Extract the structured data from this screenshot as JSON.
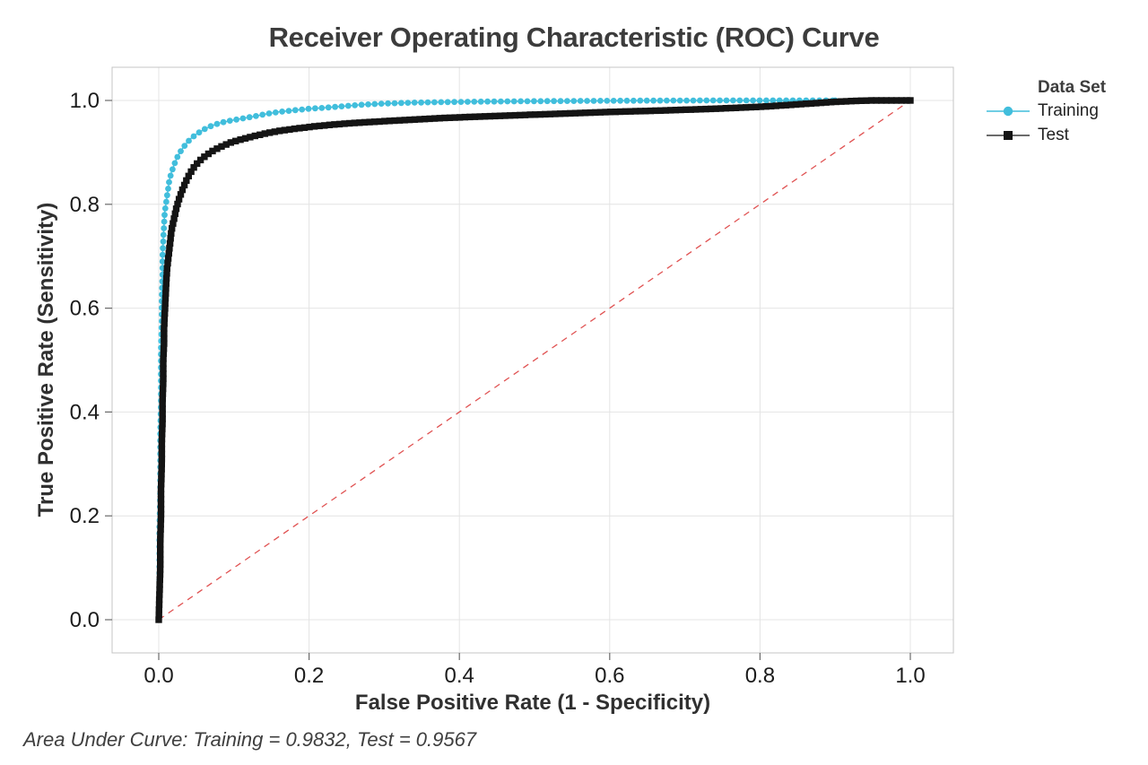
{
  "title": "Receiver Operating Characteristic (ROC) Curve",
  "footer": "Area Under Curve: Training = 0.9832, Test = 0.9567",
  "legend": {
    "title": "Data Set",
    "items": [
      {
        "label": "Training",
        "marker": "circle",
        "color": "#41bedc",
        "line_color": "#41bedc"
      },
      {
        "label": "Test",
        "marker": "square",
        "color": "#141414",
        "line_color": "#3a3a3a"
      }
    ]
  },
  "chart_data": {
    "type": "line",
    "title": "Receiver Operating Characteristic (ROC) Curve",
    "xlabel": "False Positive Rate (1 - Specificity)",
    "ylabel": "True Positive Rate (Sensitivity)",
    "xlim": [
      0.0,
      1.0
    ],
    "ylim": [
      0.0,
      1.0
    ],
    "xticks": [
      0.0,
      0.2,
      0.4,
      0.6,
      0.8,
      1.0
    ],
    "yticks": [
      0.0,
      0.2,
      0.4,
      0.6,
      0.8,
      1.0
    ],
    "grid": true,
    "legend_position": "right",
    "legend_title": "Data Set",
    "reference_line": {
      "from": [
        0,
        0
      ],
      "to": [
        1,
        1
      ],
      "style": "dashed",
      "color": "#e05252"
    },
    "colors": {
      "grid": "#e4e4e4",
      "border": "#c4c4c4",
      "tick": "#6a6a6a",
      "tick_label": "#1c1c1c"
    },
    "series": [
      {
        "name": "Training",
        "auc": 0.9832,
        "marker": "circle",
        "color": "#41bedc",
        "points": [
          [
            0.0,
            0.0
          ],
          [
            0.001,
            0.06
          ],
          [
            0.001,
            0.12
          ],
          [
            0.001,
            0.18
          ],
          [
            0.002,
            0.24
          ],
          [
            0.002,
            0.3
          ],
          [
            0.002,
            0.36
          ],
          [
            0.003,
            0.42
          ],
          [
            0.003,
            0.47
          ],
          [
            0.003,
            0.52
          ],
          [
            0.004,
            0.57
          ],
          [
            0.004,
            0.62
          ],
          [
            0.005,
            0.66
          ],
          [
            0.005,
            0.7
          ],
          [
            0.006,
            0.73
          ],
          [
            0.007,
            0.76
          ],
          [
            0.008,
            0.785
          ],
          [
            0.01,
            0.805
          ],
          [
            0.012,
            0.825
          ],
          [
            0.014,
            0.845
          ],
          [
            0.017,
            0.862
          ],
          [
            0.021,
            0.878
          ],
          [
            0.025,
            0.892
          ],
          [
            0.03,
            0.904
          ],
          [
            0.036,
            0.916
          ],
          [
            0.043,
            0.927
          ],
          [
            0.051,
            0.936
          ],
          [
            0.06,
            0.944
          ],
          [
            0.07,
            0.951
          ],
          [
            0.082,
            0.957
          ],
          [
            0.095,
            0.961
          ],
          [
            0.11,
            0.965
          ],
          [
            0.126,
            0.969
          ],
          [
            0.143,
            0.974
          ],
          [
            0.16,
            0.978
          ],
          [
            0.18,
            0.981
          ],
          [
            0.2,
            0.984
          ],
          [
            0.222,
            0.986
          ],
          [
            0.246,
            0.989
          ],
          [
            0.272,
            0.992
          ],
          [
            0.3,
            0.994
          ],
          [
            0.33,
            0.9955
          ],
          [
            0.362,
            0.9965
          ],
          [
            0.396,
            0.9972
          ],
          [
            0.432,
            0.9978
          ],
          [
            0.47,
            0.9983
          ],
          [
            0.51,
            0.9987
          ],
          [
            0.552,
            0.999
          ],
          [
            0.596,
            0.9993
          ],
          [
            0.642,
            0.9996
          ],
          [
            0.69,
            0.9998
          ],
          [
            0.74,
            1.0
          ],
          [
            0.792,
            1.0
          ],
          [
            0.846,
            1.0
          ],
          [
            0.9,
            1.0
          ]
        ]
      },
      {
        "name": "Test",
        "auc": 0.9567,
        "marker": "square",
        "color": "#141414",
        "points": [
          [
            0.0,
            0.0
          ],
          [
            0.001,
            0.05
          ],
          [
            0.002,
            0.1
          ],
          [
            0.002,
            0.15
          ],
          [
            0.003,
            0.2
          ],
          [
            0.003,
            0.25
          ],
          [
            0.004,
            0.3
          ],
          [
            0.004,
            0.34
          ],
          [
            0.005,
            0.38
          ],
          [
            0.005,
            0.42
          ],
          [
            0.006,
            0.46
          ],
          [
            0.006,
            0.5
          ],
          [
            0.007,
            0.53
          ],
          [
            0.007,
            0.56
          ],
          [
            0.008,
            0.59
          ],
          [
            0.009,
            0.62
          ],
          [
            0.01,
            0.65
          ],
          [
            0.011,
            0.675
          ],
          [
            0.013,
            0.7
          ],
          [
            0.015,
            0.725
          ],
          [
            0.017,
            0.75
          ],
          [
            0.02,
            0.77
          ],
          [
            0.023,
            0.79
          ],
          [
            0.027,
            0.81
          ],
          [
            0.032,
            0.83
          ],
          [
            0.038,
            0.85
          ],
          [
            0.045,
            0.868
          ],
          [
            0.053,
            0.882
          ],
          [
            0.062,
            0.893
          ],
          [
            0.072,
            0.903
          ],
          [
            0.083,
            0.911
          ],
          [
            0.096,
            0.919
          ],
          [
            0.11,
            0.925
          ],
          [
            0.126,
            0.931
          ],
          [
            0.144,
            0.937
          ],
          [
            0.163,
            0.942
          ],
          [
            0.184,
            0.946
          ],
          [
            0.207,
            0.95
          ],
          [
            0.232,
            0.9535
          ],
          [
            0.259,
            0.9565
          ],
          [
            0.288,
            0.959
          ],
          [
            0.318,
            0.9615
          ],
          [
            0.35,
            0.964
          ],
          [
            0.384,
            0.9665
          ],
          [
            0.42,
            0.9685
          ],
          [
            0.457,
            0.9705
          ],
          [
            0.495,
            0.9725
          ],
          [
            0.534,
            0.9745
          ],
          [
            0.574,
            0.9765
          ],
          [
            0.615,
            0.9785
          ],
          [
            0.656,
            0.98
          ],
          [
            0.698,
            0.982
          ],
          [
            0.74,
            0.984
          ],
          [
            0.772,
            0.986
          ],
          [
            0.804,
            0.988
          ],
          [
            0.836,
            0.991
          ],
          [
            0.866,
            0.994
          ],
          [
            0.896,
            0.997
          ],
          [
            0.924,
            0.999
          ],
          [
            0.95,
            1.0
          ],
          [
            0.975,
            1.0
          ],
          [
            1.0,
            1.0
          ]
        ]
      }
    ]
  }
}
